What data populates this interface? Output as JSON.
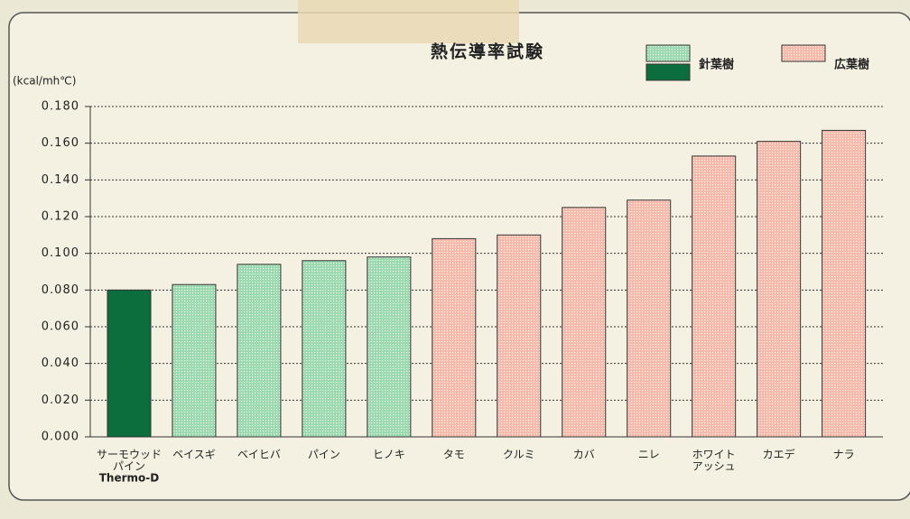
{
  "chart_data": {
    "type": "bar",
    "title": "熱伝導率試験",
    "y_label": "(kcal/mh℃)",
    "categories": [
      [
        "サーモウッド",
        "パイン",
        "Thermo-D"
      ],
      [
        "ベイスギ"
      ],
      [
        "ベイヒバ"
      ],
      [
        "パイン"
      ],
      [
        "ヒノキ"
      ],
      [
        "タモ"
      ],
      [
        "クルミ"
      ],
      [
        "カバ"
      ],
      [
        "ニレ"
      ],
      [
        "ホワイト",
        "アッシュ"
      ],
      [
        "カエデ"
      ],
      [
        "ナラ"
      ]
    ],
    "values": [
      0.08,
      0.083,
      0.094,
      0.096,
      0.098,
      0.108,
      0.11,
      0.125,
      0.129,
      0.153,
      0.161,
      0.167
    ],
    "colors": [
      "#0b6e3c",
      "#9ad8ad",
      "#9ad8ad",
      "#9ad8ad",
      "#9ad8ad",
      "#f4b9a9",
      "#f4b9a9",
      "#f4b9a9",
      "#f4b9a9",
      "#f4b9a9",
      "#f4b9a9",
      "#f4b9a9"
    ],
    "hatch": [
      false,
      true,
      true,
      true,
      true,
      true,
      true,
      true,
      true,
      true,
      true,
      true
    ],
    "legend": [
      {
        "name": "針葉樹",
        "colors": [
          "#9ad8ad",
          "#0b6e3c"
        ],
        "hatch": [
          true,
          false
        ]
      },
      {
        "name": "広葉樹",
        "colors": [
          "#f4b9a9"
        ],
        "hatch": [
          true
        ]
      }
    ],
    "ylim": [
      0,
      0.18
    ],
    "yticks": [
      {
        "value": 0,
        "label": "0.000"
      },
      {
        "value": 0.02,
        "label": "0.020"
      },
      {
        "value": 0.04,
        "label": "0.040"
      },
      {
        "value": 0.06,
        "label": "0.060"
      },
      {
        "value": 0.08,
        "label": "0.080"
      },
      {
        "value": 0.1,
        "label": "0.100"
      },
      {
        "value": 0.12,
        "label": "0.120"
      },
      {
        "value": 0.14,
        "label": "0.140"
      },
      {
        "value": 0.16,
        "label": "0.160"
      },
      {
        "value": 0.18,
        "label": "0.180"
      }
    ],
    "grid": true
  }
}
